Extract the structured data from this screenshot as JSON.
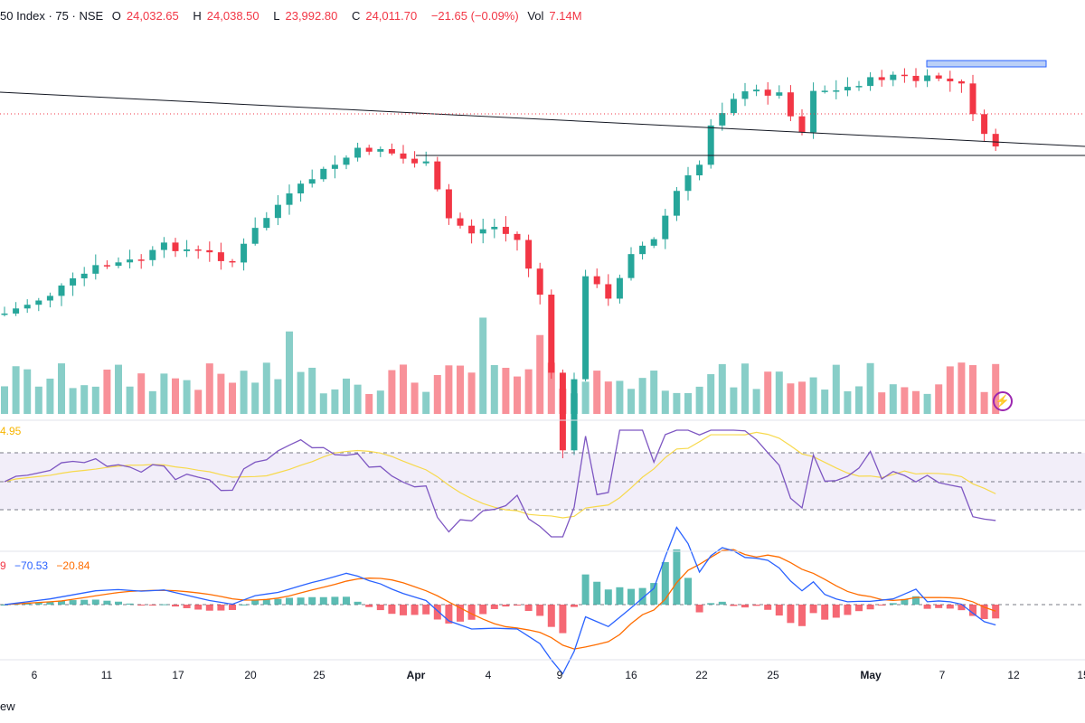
{
  "header": {
    "symbol": "50 Index · 75 · NSE",
    "o_label": "O",
    "o": "24,032.65",
    "h_label": "H",
    "h": "24,038.50",
    "l_label": "L",
    "l": "23,992.80",
    "c_label": "C",
    "c": "24,011.70",
    "change": "−21.65 (−0.09%)",
    "vol_label": "Vol",
    "vol": "7.14M"
  },
  "rsi_label": "4.95",
  "macd_labels": {
    "a": "9",
    "b": "−70.53",
    "c": "−20.84"
  },
  "footer_text": "ew",
  "colors": {
    "up": "#26a69a",
    "down": "#f23645",
    "rsi": "#7e57c2",
    "rsi_ma": "#f7d94c",
    "macd": "#2962ff",
    "signal": "#ff6d00"
  },
  "icons": [
    "lightning-icon"
  ],
  "chart_data": {
    "type": "candlestick",
    "x_ticks": [
      {
        "label": "6",
        "bold": false
      },
      {
        "label": "11",
        "bold": false
      },
      {
        "label": "17",
        "bold": false
      },
      {
        "label": "20",
        "bold": false
      },
      {
        "label": "25",
        "bold": false
      },
      {
        "label": "Apr",
        "bold": true
      },
      {
        "label": "4",
        "bold": false
      },
      {
        "label": "9",
        "bold": false
      },
      {
        "label": "16",
        "bold": false
      },
      {
        "label": "22",
        "bold": false
      },
      {
        "label": "25",
        "bold": false
      },
      {
        "label": "May",
        "bold": true
      },
      {
        "label": "7",
        "bold": false
      },
      {
        "label": "12",
        "bold": false
      },
      {
        "label": "15",
        "bold": false
      }
    ],
    "close_path": [
      [
        0,
        0.05
      ],
      [
        4,
        0.12
      ],
      [
        8,
        0.22
      ],
      [
        12,
        0.25
      ],
      [
        14,
        0.3
      ],
      [
        18,
        0.27
      ],
      [
        20,
        0.24
      ],
      [
        22,
        0.36
      ],
      [
        24,
        0.45
      ],
      [
        27,
        0.55
      ],
      [
        29,
        0.6
      ],
      [
        31,
        0.65
      ],
      [
        33,
        0.66
      ],
      [
        35,
        0.62
      ],
      [
        37,
        0.6
      ],
      [
        39,
        0.4
      ],
      [
        41,
        0.35
      ],
      [
        43,
        0.37
      ],
      [
        45,
        0.32
      ],
      [
        47,
        0.12
      ],
      [
        48,
        -0.18
      ],
      [
        49,
        -0.45
      ],
      [
        50,
        -0.2
      ],
      [
        51,
        0.2
      ],
      [
        53,
        0.1
      ],
      [
        55,
        0.28
      ],
      [
        57,
        0.32
      ],
      [
        59,
        0.5
      ],
      [
        61,
        0.6
      ],
      [
        62,
        0.75
      ],
      [
        64,
        0.85
      ],
      [
        66,
        0.87
      ],
      [
        68,
        0.86
      ],
      [
        70,
        0.72
      ],
      [
        71,
        0.88
      ],
      [
        73,
        0.87
      ],
      [
        75,
        0.9
      ],
      [
        78,
        0.93
      ],
      [
        80,
        0.91
      ],
      [
        82,
        0.92
      ],
      [
        84,
        0.89
      ],
      [
        86,
        0.7
      ],
      [
        87,
        0.67
      ]
    ]
  }
}
